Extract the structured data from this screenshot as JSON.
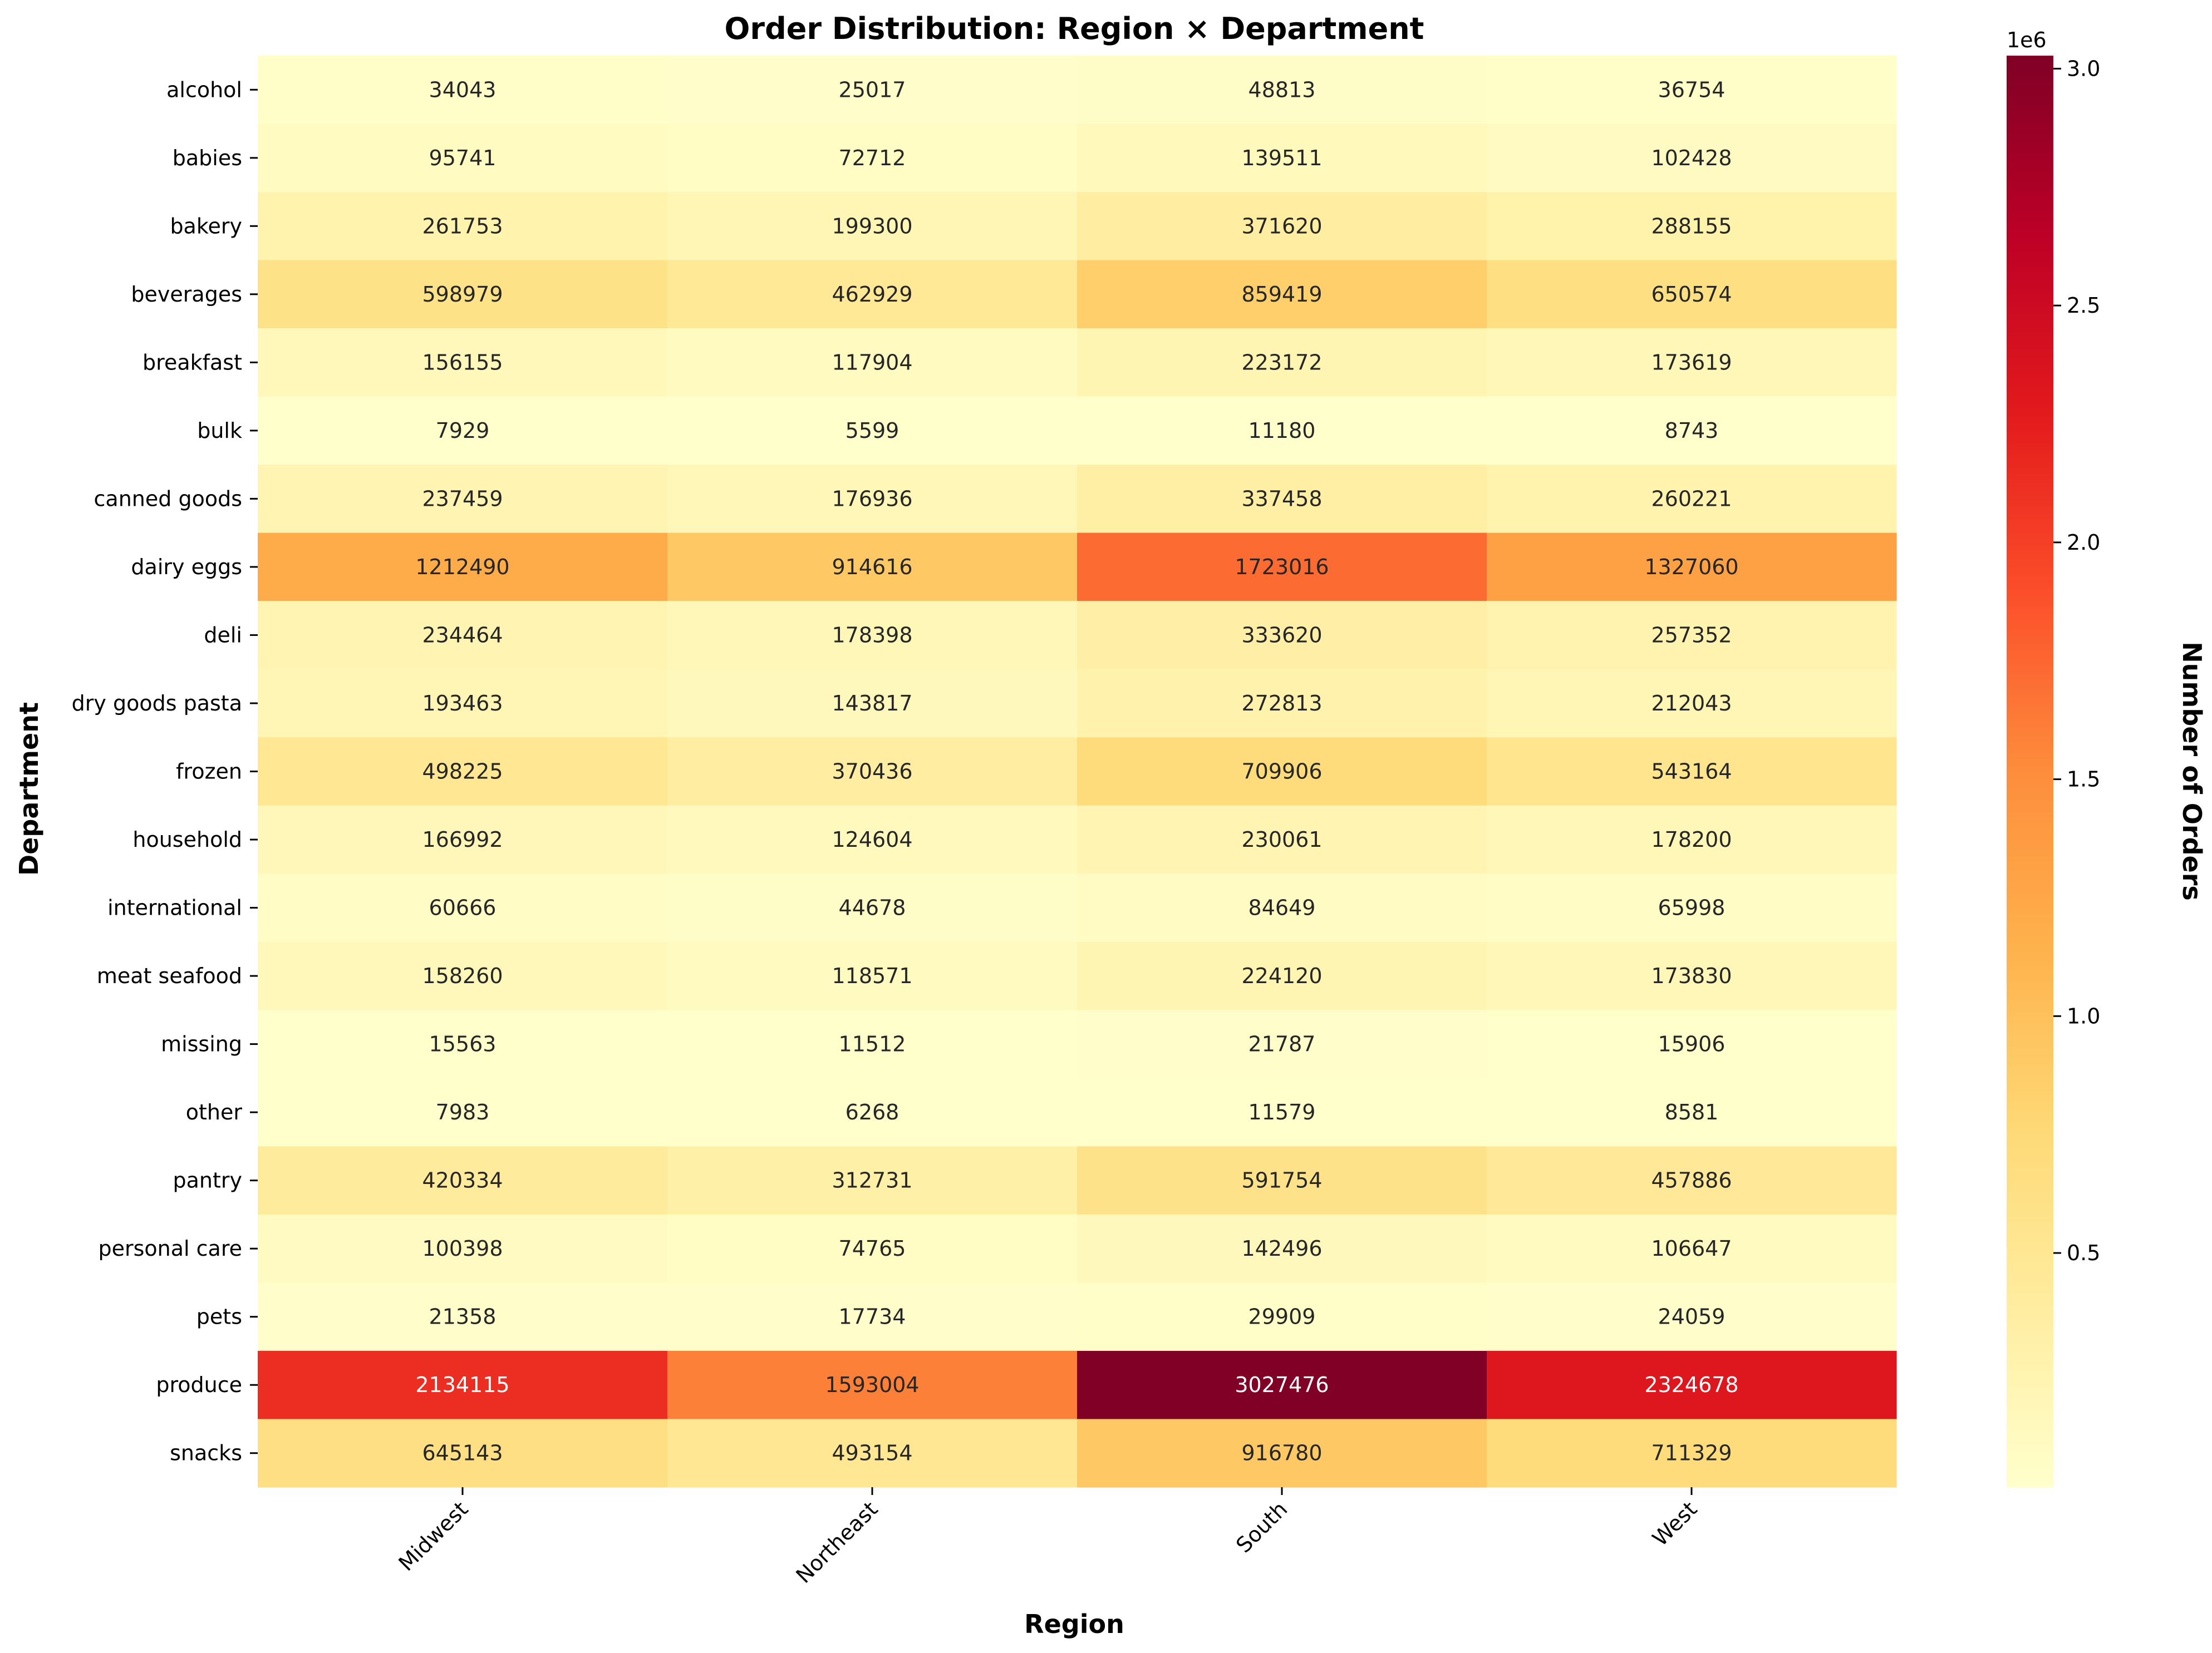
{
  "chart_data": {
    "type": "heatmap",
    "title": "Order Distribution: Region × Department",
    "xlabel": "Region",
    "ylabel": "Department",
    "x_categories": [
      "Midwest",
      "Northeast",
      "South",
      "West"
    ],
    "y_categories": [
      "alcohol",
      "babies",
      "bakery",
      "beverages",
      "breakfast",
      "bulk",
      "canned goods",
      "dairy eggs",
      "deli",
      "dry goods pasta",
      "frozen",
      "household",
      "international",
      "meat seafood",
      "missing",
      "other",
      "pantry",
      "personal care",
      "pets",
      "produce",
      "snacks"
    ],
    "values": [
      [
        34043,
        25017,
        48813,
        36754
      ],
      [
        95741,
        72712,
        139511,
        102428
      ],
      [
        261753,
        199300,
        371620,
        288155
      ],
      [
        598979,
        462929,
        859419,
        650574
      ],
      [
        156155,
        117904,
        223172,
        173619
      ],
      [
        7929,
        5599,
        11180,
        8743
      ],
      [
        237459,
        176936,
        337458,
        260221
      ],
      [
        1212490,
        914616,
        1723016,
        1327060
      ],
      [
        234464,
        178398,
        333620,
        257352
      ],
      [
        193463,
        143817,
        272813,
        212043
      ],
      [
        498225,
        370436,
        709906,
        543164
      ],
      [
        166992,
        124604,
        230061,
        178200
      ],
      [
        60666,
        44678,
        84649,
        65998
      ],
      [
        158260,
        118571,
        224120,
        173830
      ],
      [
        15563,
        11512,
        21787,
        15906
      ],
      [
        7983,
        6268,
        11579,
        8581
      ],
      [
        420334,
        312731,
        591754,
        457886
      ],
      [
        100398,
        74765,
        142496,
        106647
      ],
      [
        21358,
        17734,
        29909,
        24059
      ],
      [
        2134115,
        1593004,
        3027476,
        2324678
      ],
      [
        645143,
        493154,
        916780,
        711329
      ]
    ],
    "colorbar": {
      "label": "Number of Orders",
      "multiplier_label": "1e6",
      "colormap": "YlOrRd",
      "range": [
        5599,
        3027476
      ],
      "ticks": [
        0.5,
        1.0,
        1.5,
        2.0,
        2.5,
        3.0
      ],
      "tick_labels": [
        "0.5",
        "1.0",
        "1.5",
        "2.0",
        "2.5",
        "3.0"
      ],
      "tick_scale": 1000000
    },
    "colors": [
      "#ffffcc",
      "#ffeda0",
      "#fed976",
      "#feb24c",
      "#fd8d3c",
      "#fc4e2a",
      "#e31a1c",
      "#bd0026",
      "#800026"
    ]
  }
}
